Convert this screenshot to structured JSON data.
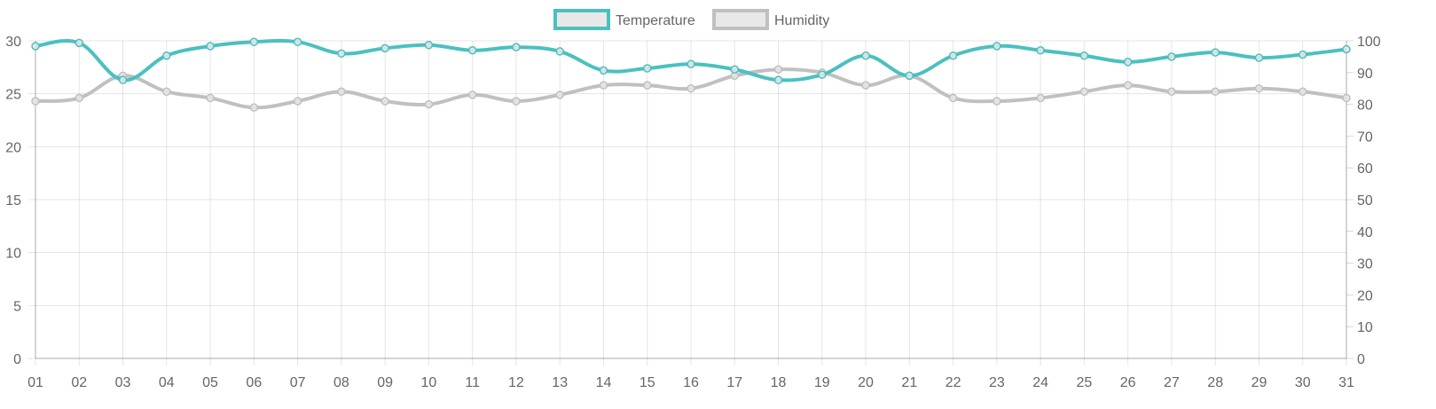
{
  "chart_data": {
    "type": "line",
    "title": "",
    "xlabel": "",
    "legend_position": "top",
    "grid": true,
    "categories": [
      "01",
      "02",
      "03",
      "04",
      "05",
      "06",
      "07",
      "08",
      "09",
      "10",
      "11",
      "12",
      "13",
      "14",
      "15",
      "16",
      "17",
      "18",
      "19",
      "20",
      "21",
      "22",
      "23",
      "24",
      "25",
      "26",
      "27",
      "28",
      "29",
      "30",
      "31"
    ],
    "y_left": {
      "ylim": [
        0,
        30
      ],
      "ticks": [
        0,
        5,
        10,
        15,
        20,
        25,
        30
      ]
    },
    "y_right": {
      "ylim": [
        0,
        100
      ],
      "ticks": [
        0,
        10,
        20,
        30,
        40,
        50,
        60,
        70,
        80,
        90,
        100
      ]
    },
    "series": [
      {
        "name": "Temperature",
        "axis": "left",
        "color": "#4bc0c0",
        "values": [
          29.5,
          29.8,
          26.3,
          28.6,
          29.5,
          29.9,
          29.9,
          28.8,
          29.3,
          29.6,
          29.1,
          29.4,
          29.0,
          27.2,
          27.4,
          27.8,
          27.3,
          26.3,
          26.8,
          28.6,
          26.7,
          28.6,
          29.5,
          29.1,
          28.6,
          28.0,
          28.5,
          28.9,
          28.4,
          28.7,
          29.2
        ]
      },
      {
        "name": "Humidity",
        "axis": "right",
        "color": "#c0c0c0",
        "values": [
          81,
          82,
          89,
          84,
          82,
          79,
          81,
          84,
          81,
          80,
          83,
          81,
          83,
          86,
          86,
          85,
          89,
          91,
          90,
          86,
          89,
          82,
          81,
          82,
          84,
          86,
          84,
          84,
          85,
          84,
          82
        ]
      }
    ]
  }
}
